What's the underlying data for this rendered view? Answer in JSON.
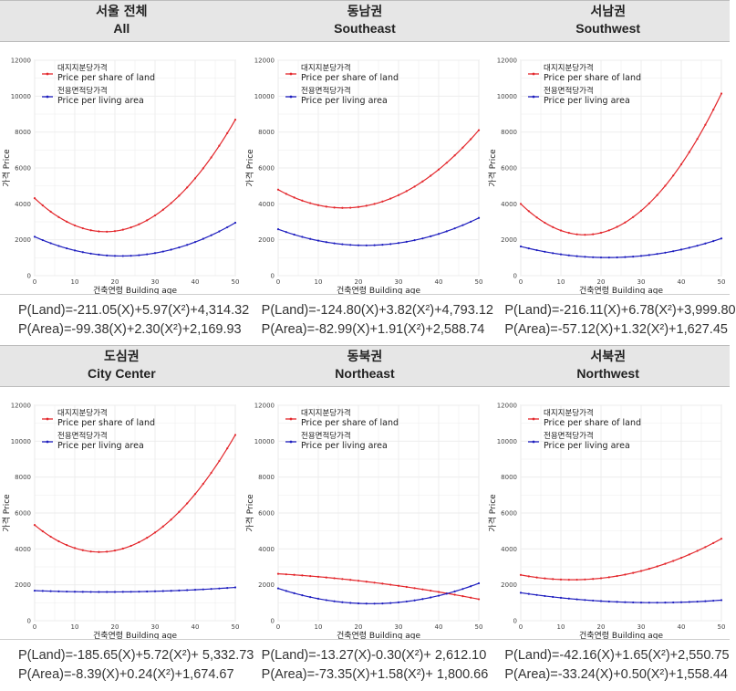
{
  "legend": {
    "land_ko": "대지지분당가격",
    "land_en": "Price per share of land",
    "area_ko": "전용면적당가격",
    "area_en": "Price per living area"
  },
  "axes": {
    "xlabel": "건축연령 Building age",
    "ylabel": "가격 Price"
  },
  "colors": {
    "land": "#e3262b",
    "area": "#1f1fbf",
    "header_bg": "#e6e6e6",
    "grid": "#ececec"
  },
  "chart_data": [
    {
      "type": "line",
      "title_ko": "서울 전체",
      "title_en": "All",
      "xlim": [
        0,
        50
      ],
      "ylim": [
        0,
        12000
      ],
      "xticks": [
        "0",
        "10",
        "20",
        "30",
        "40",
        "50"
      ],
      "yticks": [
        "0",
        "2000",
        "4000",
        "6000",
        "8000",
        "10000",
        "12000"
      ],
      "series": [
        {
          "name": "대지지분당가격 Price per share of land",
          "a": -211.05,
          "b": 5.97,
          "c": 4314.32,
          "x": [
            0,
            10,
            20,
            30,
            40,
            50
          ],
          "y": [
            4314.32,
            2800.82,
            2481.32,
            3355.82,
            5424.32,
            8686.82
          ]
        },
        {
          "name": "전용면적당가격 Price per living area",
          "a": -99.38,
          "b": 2.3,
          "c": 2169.93,
          "x": [
            0,
            10,
            20,
            30,
            40,
            50
          ],
          "y": [
            2169.93,
            1406.13,
            1102.33,
            1258.53,
            1874.73,
            2950.93
          ]
        }
      ],
      "eq_land": "P(Land)=-211.05(X)+5.97(X²)+4,314.32",
      "eq_area": "P(Area)=-99.38(X)+2.30(X²)+2,169.93"
    },
    {
      "type": "line",
      "title_ko": "동남권",
      "title_en": "Southeast",
      "xlim": [
        0,
        50
      ],
      "ylim": [
        0,
        12000
      ],
      "xticks": [
        "0",
        "10",
        "20",
        "30",
        "40",
        "50"
      ],
      "yticks": [
        "0",
        "2000",
        "4000",
        "6000",
        "8000",
        "10000",
        "12000"
      ],
      "series": [
        {
          "name": "대지지분당가격 Price per share of land",
          "a": -124.8,
          "b": 3.82,
          "c": 4793.12,
          "x": [
            0,
            10,
            20,
            30,
            40,
            50
          ],
          "y": [
            4793.12,
            3927.12,
            3825.12,
            4487.12,
            5913.12,
            8103.12
          ]
        },
        {
          "name": "전용면적당가격 Price per living area",
          "a": -82.99,
          "b": 1.91,
          "c": 2588.74,
          "x": [
            0,
            10,
            20,
            30,
            40,
            50
          ],
          "y": [
            2588.74,
            1949.84,
            1693.14,
            1818.64,
            2326.34,
            3216.24
          ]
        }
      ],
      "eq_land": "P(Land)=-124.80(X)+3.82(X²)+4,793.12",
      "eq_area": "P(Area)=-82.99(X)+1.91(X²)+2,588.74"
    },
    {
      "type": "line",
      "title_ko": "서남권",
      "title_en": "Southwest",
      "xlim": [
        0,
        50
      ],
      "ylim": [
        0,
        12000
      ],
      "xticks": [
        "0",
        "10",
        "20",
        "30",
        "40",
        "50"
      ],
      "yticks": [
        "0",
        "2000",
        "4000",
        "6000",
        "8000",
        "10000",
        "12000"
      ],
      "series": [
        {
          "name": "대지지분당가격 Price per share of land",
          "a": -216.11,
          "b": 6.78,
          "c": 3999.8,
          "x": [
            0,
            10,
            20,
            30,
            40,
            50
          ],
          "y": [
            3999.8,
            2516.7,
            2389.6,
            3618.5,
            6203.4,
            10144.3
          ]
        },
        {
          "name": "전용면적당가격 Price per living area",
          "a": -57.12,
          "b": 1.32,
          "c": 1627.45,
          "x": [
            0,
            10,
            20,
            30,
            40,
            50
          ],
          "y": [
            1627.45,
            1188.25,
            1013.05,
            1101.85,
            1454.65,
            2071.45
          ]
        }
      ],
      "eq_land": "P(Land)=-216.11(X)+6.78(X²)+3,999.80",
      "eq_area": "P(Area)=-57.12(X)+1.32(X²)+1,627.45"
    },
    {
      "type": "line",
      "title_ko": "도심권",
      "title_en": "City Center",
      "xlim": [
        0,
        50
      ],
      "ylim": [
        0,
        12000
      ],
      "xticks": [
        "0",
        "10",
        "20",
        "30",
        "40",
        "50"
      ],
      "yticks": [
        "0",
        "2000",
        "4000",
        "6000",
        "8000",
        "10000",
        "12000"
      ],
      "series": [
        {
          "name": "대지지분당가격 Price per share of land",
          "a": -185.65,
          "b": 5.72,
          "c": 5332.73,
          "x": [
            0,
            10,
            20,
            30,
            40,
            50
          ],
          "y": [
            5332.73,
            4048.23,
            3907.73,
            4911.23,
            7058.73,
            10350.23
          ]
        },
        {
          "name": "전용면적당가격 Price per living area",
          "a": -8.39,
          "b": 0.24,
          "c": 1674.67,
          "x": [
            0,
            10,
            20,
            30,
            40,
            50
          ],
          "y": [
            1674.67,
            1614.77,
            1602.87,
            1638.97,
            1723.07,
            1855.17
          ]
        }
      ],
      "eq_land": "P(Land)=-185.65(X)+5.72(X²)+ 5,332.73",
      "eq_area": "P(Area)=-8.39(X)+0.24(X²)+1,674.67"
    },
    {
      "type": "line",
      "title_ko": "동북권",
      "title_en": "Northeast",
      "xlim": [
        0,
        50
      ],
      "ylim": [
        0,
        12000
      ],
      "xticks": [
        "0",
        "10",
        "20",
        "30",
        "40",
        "50"
      ],
      "yticks": [
        "0",
        "2000",
        "4000",
        "6000",
        "8000",
        "10000",
        "12000"
      ],
      "series": [
        {
          "name": "대지지분당가격 Price per share of land",
          "a": -13.27,
          "b": -0.3,
          "c": 2612.1,
          "x": [
            0,
            10,
            20,
            30,
            40,
            50
          ],
          "y": [
            2612.1,
            2449.4,
            2226.7,
            1944.0,
            1601.3,
            1198.6
          ]
        },
        {
          "name": "전용면적당가격 Price per living area",
          "a": -73.35,
          "b": 1.58,
          "c": 1800.66,
          "x": [
            0,
            10,
            20,
            30,
            40,
            50
          ],
          "y": [
            1800.66,
            1225.16,
            965.66,
            1022.16,
            1394.66,
            2083.16
          ]
        }
      ],
      "eq_land": "P(Land)=-13.27(X)-0.30(X²)+ 2,612.10",
      "eq_area": "P(Area)=-73.35(X)+1.58(X²)+ 1,800.66"
    },
    {
      "type": "line",
      "title_ko": "서북권",
      "title_en": "Northwest",
      "xlim": [
        0,
        50
      ],
      "ylim": [
        0,
        12000
      ],
      "xticks": [
        "0",
        "10",
        "20",
        "30",
        "40",
        "50"
      ],
      "yticks": [
        "0",
        "2000",
        "4000",
        "6000",
        "8000",
        "10000",
        "12000"
      ],
      "series": [
        {
          "name": "대지지분당가격 Price per share of land",
          "a": -42.16,
          "b": 1.65,
          "c": 2550.75,
          "x": [
            0,
            10,
            20,
            30,
            40,
            50
          ],
          "y": [
            2550.75,
            2294.15,
            2367.55,
            2770.95,
            3504.35,
            4567.75
          ]
        },
        {
          "name": "전용면적당가격 Price per living area",
          "a": -33.24,
          "b": 0.5,
          "c": 1558.44,
          "x": [
            0,
            10,
            20,
            30,
            40,
            50
          ],
          "y": [
            1558.44,
            1276.04,
            1093.64,
            1011.24,
            1028.84,
            1146.44
          ]
        }
      ],
      "eq_land": "P(Land)=-42.16(X)+1.65(X²)+2,550.75",
      "eq_area": "P(Area)=-33.24(X)+0.50(X²)+1,558.44"
    }
  ]
}
